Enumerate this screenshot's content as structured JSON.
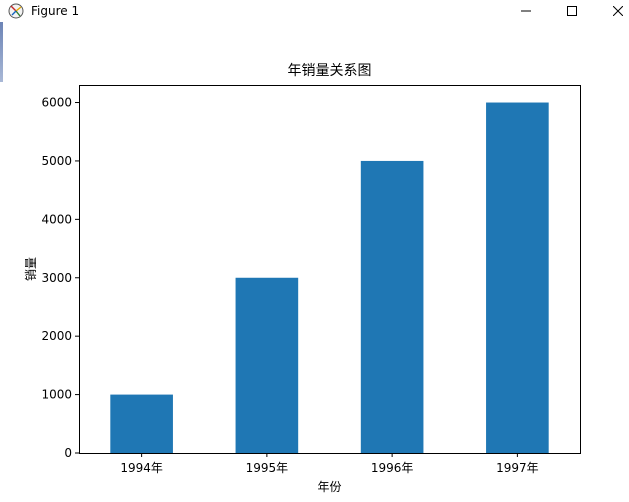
{
  "window": {
    "title": "Figure 1",
    "icon": "matplotlib-figure-icon",
    "controls": [
      "minimize-icon",
      "maximize-icon",
      "close-icon"
    ]
  },
  "chart_data": {
    "type": "bar",
    "title": "年销量关系图",
    "xlabel": "年份",
    "ylabel": "销量",
    "categories": [
      "1994年",
      "1995年",
      "1996年",
      "1997年"
    ],
    "values": [
      1000,
      3000,
      5000,
      6000
    ],
    "ylim": [
      0,
      6300
    ],
    "yticks": [
      0,
      1000,
      2000,
      3000,
      4000,
      5000,
      6000
    ],
    "bar_color": "#1f77b4",
    "grid": false,
    "legend": false
  }
}
